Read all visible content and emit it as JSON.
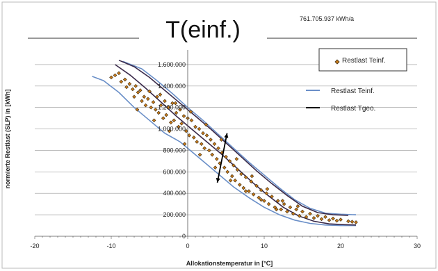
{
  "chart_data": {
    "type": "scatter",
    "title": "T(einf.)",
    "annotation": "761.705.937 kWh/a",
    "xlabel": "Allokationstemperatur in [°C]",
    "ylabel": "normierte Restlast (SLP) in [kWh]",
    "xlim": [
      -20,
      30
    ],
    "ylim": [
      0,
      1800000
    ],
    "x_ticks": [
      -20,
      -10,
      0,
      10,
      20,
      30
    ],
    "x_tick_labels": [
      "-20",
      "-10",
      "0",
      "10",
      "20",
      "30"
    ],
    "y_ticks": [
      0,
      200000,
      400000,
      600000,
      800000,
      1000000,
      1200000,
      1400000,
      1600000
    ],
    "y_tick_labels": [
      "0",
      "200.000",
      "400.000",
      "600.000",
      "800.000",
      "1.000.000",
      "1.200.000",
      "1.400.000",
      "1.600.000"
    ],
    "grid": "horizontal",
    "legend_placement": "top-right",
    "colors": {
      "points": "#c87a1a",
      "point_border": "#3a2a10",
      "band_upper": "#6a8fc8",
      "band_lower": "#6a8fc8",
      "tgeo_curves": "#3a2a4a",
      "arrow": "#000000",
      "gridline": "#999999"
    },
    "legend": [
      {
        "name": "Restlast Teinf.",
        "marker": "diamond",
        "color": "#c87a1a"
      },
      {
        "name": "Restlast Teinf.",
        "marker": "line",
        "color": "#6a8fc8"
      },
      {
        "name": "Restlast Tgeo.",
        "marker": "line",
        "color": "#111111"
      }
    ],
    "series": [
      {
        "name": "Restlast Teinf.",
        "kind": "scatter",
        "points": [
          [
            -10,
            1480000
          ],
          [
            -9.5,
            1500000
          ],
          [
            -9,
            1520000
          ],
          [
            -8.7,
            1440000
          ],
          [
            -8.2,
            1460000
          ],
          [
            -8,
            1390000
          ],
          [
            -7.6,
            1420000
          ],
          [
            -7.2,
            1370000
          ],
          [
            -7,
            1300000
          ],
          [
            -6.8,
            1400000
          ],
          [
            -6.5,
            1340000
          ],
          [
            -6.2,
            1360000
          ],
          [
            -6,
            1260000
          ],
          [
            -5.7,
            1300000
          ],
          [
            -5.5,
            1220000
          ],
          [
            -5.2,
            1280000
          ],
          [
            -5,
            1350000
          ],
          [
            -4.8,
            1200000
          ],
          [
            -4.5,
            1250000
          ],
          [
            -4.2,
            1180000
          ],
          [
            -4,
            1300000
          ],
          [
            -3.8,
            1150000
          ],
          [
            -3.5,
            1220000
          ],
          [
            -3.2,
            1100000
          ],
          [
            -3,
            1260000
          ],
          [
            -2.8,
            1130000
          ],
          [
            -2.5,
            1200000
          ],
          [
            -2.2,
            1060000
          ],
          [
            -2,
            1240000
          ],
          [
            -1.8,
            1080000
          ],
          [
            -1.5,
            1150000
          ],
          [
            -1.2,
            1020000
          ],
          [
            -1,
            1180000
          ],
          [
            -0.8,
            1050000
          ],
          [
            -0.5,
            1120000
          ],
          [
            -0.2,
            980000
          ],
          [
            0,
            1100000
          ],
          [
            0.2,
            940000
          ],
          [
            0.5,
            1080000
          ],
          [
            0.8,
            920000
          ],
          [
            1,
            1020000
          ],
          [
            1.2,
            880000
          ],
          [
            1.5,
            1000000
          ],
          [
            1.8,
            860000
          ],
          [
            2,
            960000
          ],
          [
            2.2,
            820000
          ],
          [
            2.5,
            940000
          ],
          [
            2.8,
            800000
          ],
          [
            3,
            900000
          ],
          [
            3.2,
            760000
          ],
          [
            3.5,
            860000
          ],
          [
            3.8,
            720000
          ],
          [
            4,
            820000
          ],
          [
            4.2,
            680000
          ],
          [
            4.5,
            780000
          ],
          [
            4.8,
            640000
          ],
          [
            5,
            740000
          ],
          [
            5.2,
            600000
          ],
          [
            5.5,
            700000
          ],
          [
            5.8,
            560000
          ],
          [
            6,
            660000
          ],
          [
            6.2,
            520000
          ],
          [
            6.5,
            620000
          ],
          [
            6.8,
            480000
          ],
          [
            7,
            580000
          ],
          [
            7.3,
            450000
          ],
          [
            7.6,
            550000
          ],
          [
            8,
            420000
          ],
          [
            8.3,
            510000
          ],
          [
            8.6,
            390000
          ],
          [
            9,
            470000
          ],
          [
            9.3,
            360000
          ],
          [
            9.6,
            430000
          ],
          [
            10,
            330000
          ],
          [
            10.3,
            400000
          ],
          [
            10.6,
            300000
          ],
          [
            11,
            370000
          ],
          [
            11.4,
            270000
          ],
          [
            11.8,
            330000
          ],
          [
            12.2,
            250000
          ],
          [
            12.6,
            300000
          ],
          [
            13,
            230000
          ],
          [
            13.4,
            270000
          ],
          [
            13.8,
            210000
          ],
          [
            14.2,
            250000
          ],
          [
            14.6,
            190000
          ],
          [
            15,
            230000
          ],
          [
            15.5,
            180000
          ],
          [
            16,
            210000
          ],
          [
            16.5,
            170000
          ],
          [
            17,
            190000
          ],
          [
            17.5,
            160000
          ],
          [
            18,
            180000
          ],
          [
            18.5,
            150000
          ],
          [
            19,
            165000
          ],
          [
            19.5,
            145000
          ],
          [
            20,
            155000
          ],
          [
            21,
            140000
          ],
          [
            21.5,
            135000
          ],
          [
            22,
            130000
          ],
          [
            -3.6,
            1320000
          ],
          [
            -1.6,
            1240000
          ],
          [
            0.4,
            1160000
          ],
          [
            2.4,
            1040000
          ],
          [
            4.4,
            900000
          ],
          [
            6.4,
            720000
          ],
          [
            8.4,
            560000
          ],
          [
            10.4,
            440000
          ],
          [
            12.4,
            330000
          ],
          [
            14.4,
            280000
          ],
          [
            -6.6,
            1180000
          ],
          [
            -4.4,
            1080000
          ],
          [
            -2.4,
            980000
          ],
          [
            -0.4,
            860000
          ],
          [
            1.6,
            760000
          ],
          [
            3.6,
            640000
          ],
          [
            5.6,
            520000
          ],
          [
            7.6,
            420000
          ],
          [
            9.6,
            340000
          ],
          [
            11.6,
            250000
          ]
        ]
      },
      {
        "name": "band_upper",
        "kind": "line",
        "points": [
          [
            -8.5,
            1630000
          ],
          [
            -6,
            1560000
          ],
          [
            -4,
            1450000
          ],
          [
            -2,
            1330000
          ],
          [
            0,
            1200000
          ],
          [
            2,
            1080000
          ],
          [
            4,
            950000
          ],
          [
            6,
            820000
          ],
          [
            8,
            690000
          ],
          [
            10,
            570000
          ],
          [
            12,
            450000
          ],
          [
            14,
            340000
          ],
          [
            16,
            260000
          ],
          [
            18,
            215000
          ],
          [
            20,
            205000
          ],
          [
            22,
            200000
          ]
        ]
      },
      {
        "name": "band_lower",
        "kind": "line",
        "points": [
          [
            -12.5,
            1490000
          ],
          [
            -11,
            1450000
          ],
          [
            -9,
            1340000
          ],
          [
            -7,
            1200000
          ],
          [
            -5,
            1080000
          ],
          [
            -3,
            960000
          ],
          [
            -1,
            880000
          ],
          [
            0,
            820000
          ],
          [
            2,
            700000
          ],
          [
            4,
            580000
          ],
          [
            6,
            460000
          ],
          [
            8,
            360000
          ],
          [
            10,
            270000
          ],
          [
            12,
            200000
          ],
          [
            14,
            150000
          ],
          [
            16,
            120000
          ],
          [
            18,
            105000
          ],
          [
            20,
            100000
          ],
          [
            22,
            100000
          ]
        ]
      },
      {
        "name": "tgeo_upper",
        "kind": "line",
        "points": [
          [
            -9,
            1640000
          ],
          [
            -7,
            1580000
          ],
          [
            -5,
            1480000
          ],
          [
            -3,
            1360000
          ],
          [
            -1,
            1240000
          ],
          [
            1,
            1120000
          ],
          [
            3,
            1000000
          ],
          [
            5,
            870000
          ],
          [
            7,
            740000
          ],
          [
            9,
            610000
          ],
          [
            11,
            490000
          ],
          [
            13,
            380000
          ],
          [
            15,
            280000
          ],
          [
            17,
            220000
          ],
          [
            19,
            200000
          ],
          [
            21,
            195000
          ]
        ]
      },
      {
        "name": "tgeo_lower",
        "kind": "line",
        "points": [
          [
            -9.5,
            1600000
          ],
          [
            -7.5,
            1500000
          ],
          [
            -5.5,
            1380000
          ],
          [
            -3.5,
            1250000
          ],
          [
            -1.5,
            1120000
          ],
          [
            0.5,
            1000000
          ],
          [
            2.5,
            880000
          ],
          [
            4.5,
            760000
          ],
          [
            6.5,
            630000
          ],
          [
            8.5,
            500000
          ],
          [
            10.5,
            380000
          ],
          [
            12.5,
            270000
          ],
          [
            14.5,
            190000
          ],
          [
            16.5,
            140000
          ],
          [
            18.5,
            115000
          ],
          [
            20.5,
            108000
          ],
          [
            22,
            105000
          ]
        ]
      }
    ],
    "arrow": {
      "from": [
        4.6,
        960000
      ],
      "to": [
        4.6,
        500000
      ]
    }
  }
}
